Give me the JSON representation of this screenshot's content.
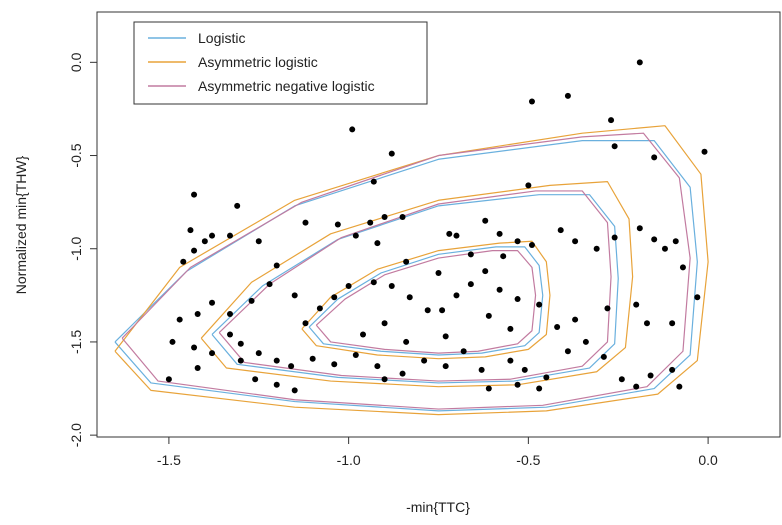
{
  "chart_data": {
    "type": "scatter-contour",
    "x_label": "-min{TTC}",
    "y_label": "Normalized min{THW}",
    "xlim": [
      -1.7,
      0.2
    ],
    "ylim": [
      -2.01,
      0.27
    ],
    "xticks": [
      -1.5,
      {
        "value": -1.0,
        "label": "-1.0"
      },
      -0.5,
      {
        "value": 0.0,
        "label": "0.0"
      }
    ],
    "yticks": [
      {
        "value": 0.0,
        "label": "0.0"
      },
      -0.5,
      {
        "value": -1.0,
        "label": "-1.0"
      },
      -1.5,
      {
        "value": -2.0,
        "label": "-2.0"
      }
    ],
    "legend": "topleft",
    "point_color": "#000000",
    "series": [
      {
        "name": "Logistic",
        "color": "#6ab0de",
        "contours": [
          {
            "x": [
              -1.65,
              -1.45,
              -1.15,
              -0.75,
              -0.35,
              -0.15,
              -0.05,
              -0.03,
              -0.05,
              -0.15,
              -0.45,
              -0.75,
              -1.15,
              -1.55,
              -1.65
            ],
            "y": [
              -1.5,
              -1.12,
              -0.77,
              -0.52,
              -0.42,
              -0.42,
              -0.67,
              -1.07,
              -1.57,
              -1.75,
              -1.85,
              -1.87,
              -1.82,
              -1.72,
              -1.5
            ]
          },
          {
            "x": [
              -1.38,
              -1.24,
              -1.03,
              -0.75,
              -0.47,
              -0.33,
              -0.26,
              -0.25,
              -0.26,
              -0.33,
              -0.54,
              -0.75,
              -1.03,
              -1.31,
              -1.38
            ],
            "y": [
              -1.46,
              -1.2,
              -0.95,
              -0.77,
              -0.71,
              -0.71,
              -0.88,
              -1.16,
              -1.51,
              -1.64,
              -1.71,
              -1.72,
              -1.69,
              -1.62,
              -1.46
            ]
          },
          {
            "x": [
              -1.11,
              -1.03,
              -0.91,
              -0.75,
              -0.59,
              -0.51,
              -0.47,
              -0.46,
              -0.47,
              -0.51,
              -0.63,
              -0.75,
              -0.91,
              -1.07,
              -1.11
            ],
            "y": [
              -1.42,
              -1.27,
              -1.13,
              -1.03,
              -0.99,
              -0.99,
              -1.09,
              -1.25,
              -1.45,
              -1.52,
              -1.56,
              -1.57,
              -1.55,
              -1.51,
              -1.42
            ]
          }
        ]
      },
      {
        "name": "Asymmetric logistic",
        "color": "#e8a33a",
        "contours": [
          {
            "x": [
              -1.65,
              -1.47,
              -1.15,
              -0.75,
              -0.35,
              -0.12,
              -0.02,
              0.0,
              -0.03,
              -0.14,
              -0.45,
              -0.75,
              -1.15,
              -1.55,
              -1.65
            ],
            "y": [
              -1.55,
              -1.1,
              -0.74,
              -0.5,
              -0.38,
              -0.34,
              -0.6,
              -1.07,
              -1.6,
              -1.78,
              -1.87,
              -1.89,
              -1.85,
              -1.76,
              -1.55
            ]
          },
          {
            "x": [
              -1.41,
              -1.27,
              -1.05,
              -0.75,
              -0.44,
              -0.28,
              -0.22,
              -0.21,
              -0.23,
              -0.31,
              -0.53,
              -0.75,
              -1.05,
              -1.34,
              -1.41
            ],
            "y": [
              -1.48,
              -1.18,
              -0.92,
              -0.74,
              -0.66,
              -0.64,
              -0.84,
              -1.15,
              -1.53,
              -1.66,
              -1.73,
              -1.74,
              -1.71,
              -1.64,
              -1.48
            ]
          },
          {
            "x": [
              -1.13,
              -1.05,
              -0.92,
              -0.75,
              -0.58,
              -0.49,
              -0.45,
              -0.44,
              -0.45,
              -0.5,
              -0.62,
              -0.75,
              -0.92,
              -1.09,
              -1.13
            ],
            "y": [
              -1.43,
              -1.26,
              -1.11,
              -1.01,
              -0.97,
              -0.96,
              -1.07,
              -1.25,
              -1.46,
              -1.54,
              -1.58,
              -1.59,
              -1.57,
              -1.52,
              -1.43
            ]
          }
        ]
      },
      {
        "name": "Asymmetric negative logistic",
        "color": "#c27ba0",
        "contours": [
          {
            "x": [
              -1.63,
              -1.44,
              -1.13,
              -0.75,
              -0.35,
              -0.18,
              -0.08,
              -0.05,
              -0.07,
              -0.17,
              -0.46,
              -0.75,
              -1.15,
              -1.53,
              -1.63
            ],
            "y": [
              -1.48,
              -1.1,
              -0.75,
              -0.5,
              -0.4,
              -0.38,
              -0.62,
              -1.05,
              -1.55,
              -1.74,
              -1.84,
              -1.86,
              -1.81,
              -1.71,
              -1.48
            ]
          },
          {
            "x": [
              -1.36,
              -1.22,
              -1.02,
              -0.75,
              -0.48,
              -0.35,
              -0.28,
              -0.27,
              -0.28,
              -0.35,
              -0.55,
              -0.75,
              -1.02,
              -1.29,
              -1.36
            ],
            "y": [
              -1.45,
              -1.19,
              -0.94,
              -0.76,
              -0.69,
              -0.69,
              -0.86,
              -1.15,
              -1.5,
              -1.63,
              -1.7,
              -1.71,
              -1.68,
              -1.61,
              -1.45
            ]
          },
          {
            "x": [
              -1.09,
              -1.01,
              -0.9,
              -0.75,
              -0.6,
              -0.53,
              -0.49,
              -0.48,
              -0.49,
              -0.53,
              -0.64,
              -0.75,
              -0.9,
              -1.05,
              -1.09
            ],
            "y": [
              -1.41,
              -1.27,
              -1.14,
              -1.05,
              -1.01,
              -1.01,
              -1.1,
              -1.25,
              -1.44,
              -1.51,
              -1.55,
              -1.56,
              -1.54,
              -1.5,
              -1.41
            ]
          }
        ]
      }
    ],
    "points": {
      "x": [
        -0.19,
        -0.49,
        -0.39,
        -0.99,
        -0.27,
        -0.01,
        -0.15,
        -0.88,
        -0.26,
        -1.43,
        -1.31,
        -1.44,
        -1.38,
        -1.33,
        -1.4,
        -1.25,
        -1.46,
        -1.43,
        -1.2,
        -0.93,
        -1.12,
        -1.03,
        -0.94,
        -0.9,
        -0.85,
        -0.98,
        -0.92,
        -0.7,
        -0.72,
        -0.62,
        -0.58,
        -0.53,
        -0.49,
        -0.5,
        -0.41,
        -0.37,
        -0.31,
        -0.26,
        -0.19,
        -0.15,
        -0.12,
        -0.09,
        -0.07,
        -0.03,
        -0.1,
        -0.17,
        -0.2,
        -0.28,
        -0.37,
        -0.42,
        -0.47,
        -0.53,
        -0.58,
        -0.62,
        -0.66,
        -0.7,
        -0.78,
        -0.83,
        -0.88,
        -0.93,
        -1.0,
        -1.04,
        -1.08,
        -1.12,
        -1.15,
        -1.22,
        -1.27,
        -1.33,
        -1.38,
        -1.42,
        -1.47,
        -1.49,
        -1.43,
        -1.38,
        -1.33,
        -1.3,
        -1.25,
        -1.2,
        -1.16,
        -1.1,
        -1.04,
        -0.98,
        -0.92,
        -0.85,
        -0.79,
        -0.73,
        -0.68,
        -0.63,
        -0.55,
        -0.51,
        -0.45,
        -0.39,
        -0.34,
        -0.29,
        -0.24,
        -0.2,
        -0.16,
        -0.1,
        -0.08,
        -1.5,
        -1.42,
        -1.3,
        -1.26,
        -1.2,
        -1.15,
        -0.9,
        -0.61,
        -0.53,
        -0.47,
        -0.74,
        -0.73,
        -0.61,
        -0.55,
        -0.9,
        -0.96,
        -0.84,
        -0.66,
        -0.57,
        -0.84,
        -0.75
      ],
      "y": [
        0.0,
        -0.21,
        -0.18,
        -0.36,
        -0.31,
        -0.48,
        -0.51,
        -0.49,
        -0.45,
        -0.71,
        -0.77,
        -0.9,
        -0.93,
        -0.93,
        -0.96,
        -0.96,
        -1.07,
        -1.01,
        -1.09,
        -0.64,
        -0.86,
        -0.87,
        -0.86,
        -0.83,
        -0.83,
        -0.93,
        -0.97,
        -0.93,
        -0.92,
        -0.85,
        -0.92,
        -0.96,
        -0.98,
        -0.66,
        -0.9,
        -0.96,
        -1.0,
        -0.94,
        -0.89,
        -0.95,
        -1.0,
        -0.96,
        -1.1,
        -1.26,
        -1.4,
        -1.4,
        -1.3,
        -1.32,
        -1.38,
        -1.42,
        -1.3,
        -1.27,
        -1.22,
        -1.12,
        -1.19,
        -1.25,
        -1.33,
        -1.26,
        -1.2,
        -1.18,
        -1.2,
        -1.26,
        -1.32,
        -1.4,
        -1.25,
        -1.19,
        -1.28,
        -1.35,
        -1.29,
        -1.35,
        -1.38,
        -1.5,
        -1.53,
        -1.56,
        -1.46,
        -1.51,
        -1.56,
        -1.6,
        -1.63,
        -1.59,
        -1.62,
        -1.57,
        -1.63,
        -1.67,
        -1.6,
        -1.63,
        -1.55,
        -1.65,
        -1.6,
        -1.65,
        -1.69,
        -1.55,
        -1.5,
        -1.58,
        -1.7,
        -1.74,
        -1.68,
        -1.65,
        -1.74,
        -1.7,
        -1.64,
        -1.6,
        -1.7,
        -1.73,
        -1.76,
        -1.7,
        -1.75,
        -1.73,
        -1.75,
        -1.33,
        -1.47,
        -1.36,
        -1.43,
        -1.4,
        -1.46,
        -1.5,
        -1.03,
        -1.04,
        -1.07,
        -1.13
      ]
    }
  }
}
